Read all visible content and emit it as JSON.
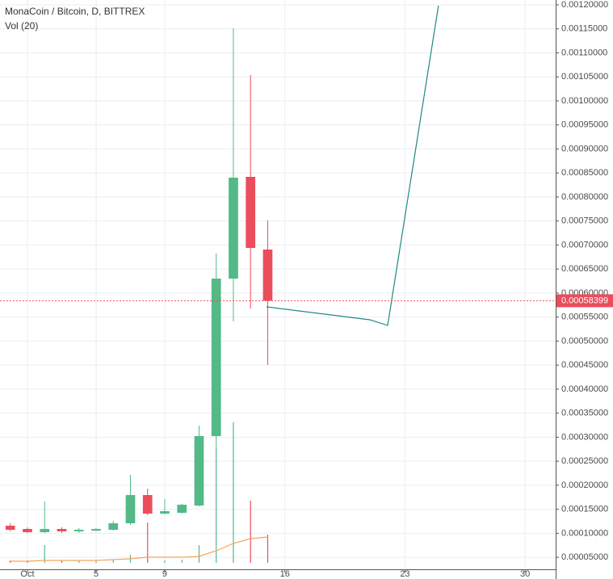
{
  "chart_data": {
    "type": "candlestick",
    "title": "MonaCoin / Bitcoin, D, BITTREX",
    "subtitle": "Vol (20)",
    "up_color": "#53b987",
    "down_color": "#eb4d5c",
    "grid": true,
    "x": [
      0,
      1,
      2,
      3,
      4,
      5,
      6,
      7,
      8,
      9,
      10,
      11,
      12,
      13,
      14,
      15
    ],
    "open": [
      0.0001157,
      0.000109,
      0.0001023,
      0.000109,
      0.000104,
      0.0001056,
      0.0001073,
      0.0001208,
      0.0001796,
      0.0001409,
      0.0001426,
      0.0001577,
      0.0003023,
      0.0006301,
      0.0008419,
      0.0006906
    ],
    "high": [
      0.0001208,
      0.0001124,
      0.0001662,
      0.0001124,
      0.0001107,
      0.0001107,
      0.0001258,
      0.0002216,
      0.000193,
      0.0001712,
      0.000161,
      0.0003242,
      0.0006822,
      0.0011512,
      0.0010537,
      0.0007511
    ],
    "low": [
      0.000104,
      0.0001006,
      0.0001006,
      0.0001006,
      0.0001006,
      0.000104,
      0.0001056,
      0.0001174,
      0.0001376,
      0.0001393,
      0.0001409,
      0.000156,
      0.000277,
      0.000541,
      0.0005679,
      0.0004502
    ],
    "close": [
      0.0001073,
      0.0001023,
      0.000109,
      0.000104,
      0.0001073,
      0.000109,
      0.0001208,
      0.0001796,
      0.0001409,
      0.000146,
      0.0001594,
      0.0003023,
      0.0006301,
      0.0008402,
      0.000694,
      0.00058399
    ],
    "volume": [
      3,
      3,
      22,
      3,
      3,
      3,
      4,
      10,
      50,
      3,
      4,
      22,
      142,
      174,
      77,
      35
    ],
    "volume_ma": [
      2,
      2,
      3,
      3,
      3,
      3,
      4,
      5,
      7,
      7,
      7,
      8,
      15,
      24,
      30,
      32
    ],
    "volume_ma_color": "#f7a35c",
    "last_price": 0.00058399,
    "last_price_color": "#eb4d5c",
    "trendline": {
      "x": [
        14.93,
        20.95,
        21.99,
        24.95
      ],
      "values": [
        0.0005713,
        0.0005444,
        0.0005326,
        0.0011982
      ],
      "color": "#1e8a80"
    },
    "xlim": [
      -0.6,
      31.78
    ],
    "xticks": [
      {
        "value": 1,
        "label": "Oct"
      },
      5,
      9,
      16,
      23,
      30
    ],
    "ylim": [
      2.5e-05,
      0.00121
    ],
    "yticks": [
      {
        "value": 5e-05,
        "label": "0.00005000"
      },
      {
        "value": 0.0001,
        "label": "0.00010000"
      },
      {
        "value": 0.00015,
        "label": "0.00015000"
      },
      {
        "value": 0.0002,
        "label": "0.00020000"
      },
      {
        "value": 0.00025,
        "label": "0.00025000"
      },
      {
        "value": 0.0003,
        "label": "0.00030000"
      },
      {
        "value": 0.00035,
        "label": "0.00035000"
      },
      {
        "value": 0.0004,
        "label": "0.00040000"
      },
      {
        "value": 0.00045,
        "label": "0.00045000"
      },
      {
        "value": 0.0005,
        "label": "0.00050000"
      },
      {
        "value": 0.00055,
        "label": "0.00055000"
      },
      {
        "value": 0.0006,
        "label": "0.00060000"
      },
      {
        "value": 0.00065,
        "label": "0.00065000"
      },
      {
        "value": 0.0007,
        "label": "0.00070000"
      },
      {
        "value": 0.00075,
        "label": "0.00075000"
      },
      {
        "value": 0.0008,
        "label": "0.00080000"
      },
      {
        "value": 0.00085,
        "label": "0.00085000"
      },
      {
        "value": 0.0009,
        "label": "0.00090000"
      },
      {
        "value": 0.00095,
        "label": "0.00095000"
      },
      {
        "value": 0.001,
        "label": "0.00100000"
      },
      {
        "value": 0.00105,
        "label": "0.00105000"
      },
      {
        "value": 0.0011,
        "label": "0.00110000"
      },
      {
        "value": 0.00115,
        "label": "0.00115000"
      },
      {
        "value": 0.0012,
        "label": "0.00120000"
      }
    ]
  }
}
